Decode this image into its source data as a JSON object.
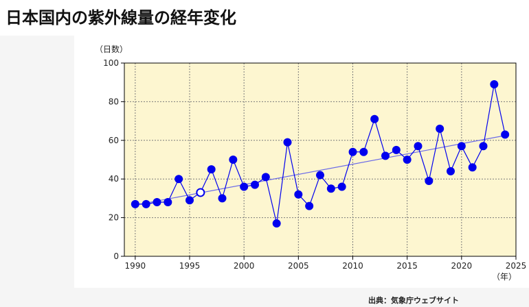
{
  "page": {
    "title": "日本国内の紫外線量の経年変化",
    "source": "出典：気象庁ウェブサイト"
  },
  "colors": {
    "plot_background": "#fdf6d0",
    "series": "#0000ee",
    "trend": "#6a6ae8",
    "grid": "#7a7a7a",
    "band": "#f5f5f5"
  },
  "chart_data": {
    "type": "line",
    "title": "",
    "xlabel": "（年）",
    "ylabel": "（日数）",
    "xlim": [
      1989,
      2025
    ],
    "ylim": [
      0,
      100
    ],
    "x_ticks": [
      1990,
      1995,
      2000,
      2005,
      2010,
      2015,
      2020,
      2025
    ],
    "y_ticks": [
      0,
      20,
      40,
      60,
      80,
      100
    ],
    "grid": true,
    "series": [
      {
        "x": [
          1990,
          1991,
          1992,
          1993,
          1994,
          1995,
          1996,
          1997,
          1998,
          1999,
          2000,
          2001,
          2002,
          2003,
          2004,
          2005,
          2006,
          2007,
          2008,
          2009,
          2010,
          2011,
          2012,
          2013,
          2014,
          2015,
          2016,
          2017,
          2018,
          2019,
          2020,
          2021,
          2022,
          2023,
          2024
        ],
        "values": [
          27,
          27,
          28,
          28,
          40,
          29,
          33,
          45,
          30,
          50,
          36,
          37,
          41,
          17,
          59,
          32,
          26,
          42,
          35,
          36,
          54,
          54,
          71,
          52,
          55,
          50,
          57,
          39,
          66,
          44,
          57,
          46,
          57,
          89,
          63
        ],
        "hollow_points": [
          1996
        ]
      }
    ],
    "trend_line": {
      "x": [
        1990,
        2024
      ],
      "values": [
        26.5,
        62.5
      ]
    }
  }
}
